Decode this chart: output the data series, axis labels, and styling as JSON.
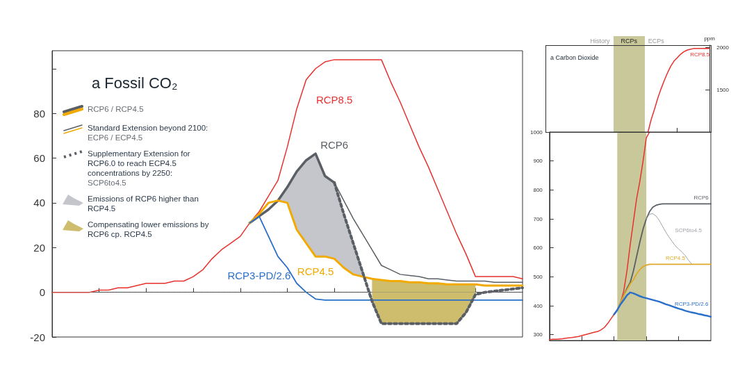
{
  "chart_data": [
    {
      "type": "line",
      "title": "a Fossil CO₂",
      "categories": [
        null,
        null,
        null,
        null,
        null,
        null,
        null,
        null,
        null,
        null,
        null,
        null,
        null,
        null,
        null,
        null,
        null,
        null,
        null,
        null,
        null,
        null,
        null,
        null,
        null,
        null,
        null,
        null,
        null,
        null,
        null,
        null,
        null,
        null,
        null,
        null,
        null,
        null,
        null,
        null,
        null,
        null,
        null,
        null,
        null,
        null,
        null,
        null,
        null,
        null,
        null
      ],
      "ylim": [
        -20,
        108
      ],
      "yticks": [
        -20,
        0,
        20,
        40,
        60,
        80,
        {
          "value": 100,
          "label": null
        }
      ],
      "tick_labels": "y",
      "marker": "none",
      "legend": "top left",
      "annotations": [
        "RCP6 / RCP4.5",
        "Standard Extension beyond 2100:",
        "ECP6 / ECP4.5",
        "Supplementary Extension for RCP6.0 to reach ECP4.5 concentrations by 2250:",
        "SCP6to4.5",
        "Emissions of RCP6 higher than RCP4.5",
        "Compensating lower emissions by RCP6 cp. RCP4.5"
      ],
      "ref_lines": [
        {
          "axis": "y",
          "value": 0,
          "line_style": "dotted",
          "color": "#777777"
        }
      ],
      "series": [
        {
          "name": "RCP8.5",
          "color": "#e8312c",
          "values": [
            0,
            0,
            0,
            0,
            0,
            1,
            1,
            2,
            2,
            3,
            4,
            4,
            4,
            5,
            5,
            7,
            10,
            15,
            19,
            22,
            25,
            31,
            36,
            43,
            50,
            65,
            82,
            95,
            100,
            103,
            104,
            104,
            104,
            104,
            104,
            104,
            94,
            85,
            75,
            65,
            56,
            46,
            36,
            26,
            17,
            7,
            7,
            7,
            7,
            7,
            6
          ]
        },
        {
          "name": "RCP6",
          "color": "#5a5f66",
          "values": [
            null,
            null,
            null,
            null,
            null,
            null,
            null,
            null,
            null,
            null,
            null,
            null,
            null,
            null,
            null,
            null,
            null,
            null,
            null,
            null,
            null,
            31,
            34,
            37,
            41,
            47,
            54,
            59,
            62,
            52,
            49,
            null,
            null,
            null,
            null,
            null,
            null,
            null,
            null,
            null,
            null,
            null,
            null,
            null,
            null,
            null,
            null,
            null,
            null,
            null,
            null
          ]
        },
        {
          "name": "RCP4.5",
          "color": "#f2a900",
          "values": [
            null,
            null,
            null,
            null,
            null,
            null,
            null,
            null,
            null,
            null,
            null,
            null,
            null,
            null,
            null,
            null,
            null,
            null,
            null,
            null,
            null,
            31,
            35,
            40,
            41,
            40,
            28,
            22,
            16,
            16,
            15,
            11,
            8,
            7,
            6,
            5.5,
            5,
            5,
            4.5,
            4.5,
            4,
            4,
            3.5,
            3.5,
            3.5,
            3.5,
            3,
            3,
            3,
            3,
            3
          ],
          "lower": [
            null,
            null,
            null,
            null,
            null,
            null,
            null,
            null,
            null,
            null,
            null,
            null,
            null,
            null,
            null,
            null,
            null,
            null,
            null,
            null,
            null,
            null,
            null,
            null,
            41,
            40,
            28,
            22,
            16,
            16,
            15,
            11,
            8,
            7,
            null,
            null,
            null,
            null,
            null,
            null,
            null,
            null,
            null,
            null,
            null,
            null,
            null,
            null,
            null,
            null,
            null
          ],
          "upper": [
            null,
            null,
            null,
            null,
            null,
            null,
            null,
            null,
            null,
            null,
            null,
            null,
            null,
            null,
            null,
            null,
            null,
            null,
            null,
            null,
            null,
            null,
            null,
            null,
            41,
            47,
            54,
            59,
            62,
            52,
            49,
            35,
            22,
            9,
            null,
            null,
            null,
            null,
            null,
            null,
            null,
            null,
            null,
            null,
            null,
            null,
            null,
            null,
            null,
            null,
            null
          ]
        },
        {
          "name": "RCP3-PD/2.6",
          "color": "#2a6fc9",
          "values": [
            null,
            null,
            null,
            null,
            null,
            null,
            null,
            null,
            null,
            null,
            null,
            null,
            null,
            null,
            null,
            null,
            null,
            null,
            null,
            null,
            null,
            31,
            34,
            25,
            16,
            11,
            4,
            0,
            -3,
            -3.5,
            -3.5,
            -3.5,
            -3.5,
            -3.5,
            -3.5,
            -3.5,
            -3.5,
            -3.5,
            -3.5,
            -3.5,
            -3.5,
            -3.5,
            -3.5,
            -3.5,
            -3.5,
            -3.5,
            -3.5,
            -3.5,
            -3.5,
            -3.5,
            -3.5
          ]
        },
        {
          "color": "#5a5f66",
          "values": [
            null,
            null,
            null,
            null,
            null,
            null,
            null,
            null,
            null,
            null,
            null,
            null,
            null,
            null,
            null,
            null,
            null,
            null,
            null,
            null,
            null,
            null,
            null,
            null,
            null,
            null,
            null,
            null,
            null,
            null,
            49,
            41,
            33,
            26,
            19,
            12,
            10,
            8,
            7.5,
            7,
            6,
            6,
            5.5,
            5,
            5,
            5,
            5,
            4.5,
            4.5,
            4.5,
            4.5
          ]
        },
        {
          "color": "#5a5f66",
          "line_style": "dotted",
          "values": [
            null,
            null,
            null,
            null,
            null,
            null,
            null,
            null,
            null,
            null,
            null,
            null,
            null,
            null,
            null,
            null,
            null,
            null,
            null,
            null,
            null,
            null,
            null,
            null,
            null,
            null,
            null,
            null,
            null,
            null,
            49,
            35,
            22,
            9,
            -4,
            -14,
            -14,
            -14,
            -14,
            -14,
            -14,
            -14,
            -14,
            -14,
            -9,
            -1,
            0,
            0.5,
            1,
            1.5,
            2
          ],
          "lower": [
            null,
            null,
            null,
            null,
            null,
            null,
            null,
            null,
            null,
            null,
            null,
            null,
            null,
            null,
            null,
            null,
            null,
            null,
            null,
            null,
            null,
            null,
            null,
            null,
            null,
            null,
            null,
            null,
            null,
            null,
            null,
            null,
            null,
            null,
            -4,
            -14,
            -14,
            -14,
            -14,
            -14,
            -14,
            -14,
            -14,
            -14,
            -9,
            -1,
            null,
            null,
            null,
            null,
            null
          ],
          "upper": [
            null,
            null,
            null,
            null,
            null,
            null,
            null,
            null,
            null,
            null,
            null,
            null,
            null,
            null,
            null,
            null,
            null,
            null,
            null,
            null,
            null,
            null,
            null,
            null,
            null,
            null,
            null,
            null,
            null,
            null,
            null,
            null,
            null,
            null,
            6,
            5.5,
            5,
            5,
            4.5,
            4.5,
            4,
            4,
            3.5,
            3.5,
            3.5,
            3.5,
            null,
            null,
            null,
            null,
            null
          ]
        }
      ]
    },
    {
      "type": "other",
      "title": "a Carbon Dioxide"
    },
    {
      "type": "line",
      "ylabel": "ppm",
      "categories": [
        null,
        null,
        null,
        null,
        null,
        null,
        null,
        null,
        null,
        null,
        null,
        null,
        null,
        null,
        null,
        null,
        null,
        null,
        null,
        null
      ],
      "ylim": [
        1000,
        2030
      ],
      "yticks": [
        1500,
        2000
      ],
      "tick_labels": "y",
      "marker": "none",
      "annotations": [
        "History",
        "RCPs",
        "ECPs"
      ],
      "series": [
        {
          "name": "RCP8.5",
          "color": "#e8312c",
          "values": [
            1000,
            1150,
            1270,
            1400,
            1510,
            1610,
            1700,
            1780,
            1840,
            1880,
            1920,
            1950,
            1970,
            1980,
            1990,
            1990,
            1990,
            1990,
            1990,
            1990
          ]
        }
      ]
    },
    {
      "type": "line",
      "categories": [
        null,
        null,
        null,
        null,
        null,
        null,
        null,
        null,
        null,
        null,
        null,
        null,
        null,
        null,
        null,
        null,
        null,
        null,
        null,
        null,
        null,
        null,
        null,
        null,
        null,
        null,
        null,
        null,
        null,
        null,
        null,
        null,
        null,
        null,
        null,
        null,
        null,
        null,
        null,
        null,
        null,
        null,
        null,
        null,
        null,
        null,
        null,
        null,
        null,
        null,
        null
      ],
      "ylim": [
        280,
        1000
      ],
      "yticks": [
        300,
        400,
        500,
        600,
        700,
        800,
        900,
        1000
      ],
      "tick_labels": "y",
      "marker": "none",
      "series": [
        {
          "color": "#e8312c",
          "values": [
            283,
            284,
            284,
            285,
            286,
            288,
            289,
            290,
            292,
            294,
            297,
            300,
            303,
            306,
            309,
            311,
            317,
            325,
            338,
            354,
            370,
            385,
            410,
            450,
            520,
            610,
            690,
            770,
            830,
            900,
            980,
            1000,
            null,
            null,
            null,
            null,
            null,
            null,
            null,
            null,
            null,
            null,
            null,
            null,
            null,
            null,
            null,
            null,
            null,
            null,
            null
          ]
        },
        {
          "name": "RCP6",
          "color": "#5a5f66",
          "values": [
            null,
            null,
            null,
            null,
            null,
            null,
            null,
            null,
            null,
            null,
            null,
            null,
            null,
            null,
            null,
            null,
            null,
            null,
            null,
            null,
            370,
            385,
            410,
            435,
            460,
            480,
            520,
            570,
            620,
            665,
            700,
            725,
            740,
            747,
            750,
            752,
            752,
            752,
            752,
            752,
            752,
            752,
            752,
            752,
            752,
            752,
            752,
            752,
            752,
            752,
            752
          ]
        },
        {
          "name": "SCP6to4.5",
          "color": "#a0a3a8",
          "values": [
            null,
            null,
            null,
            null,
            null,
            null,
            null,
            null,
            null,
            null,
            null,
            null,
            null,
            null,
            null,
            null,
            null,
            null,
            null,
            null,
            null,
            null,
            null,
            null,
            null,
            null,
            null,
            null,
            null,
            null,
            700,
            716,
            718,
            710,
            695,
            675,
            655,
            638,
            622,
            607,
            596,
            586,
            574,
            558,
            545,
            null,
            null,
            null,
            null,
            null,
            null
          ]
        },
        {
          "name": "RCP4.5",
          "color": "#e0a828",
          "values": [
            null,
            null,
            null,
            null,
            null,
            null,
            null,
            null,
            null,
            null,
            null,
            null,
            null,
            null,
            null,
            null,
            null,
            null,
            null,
            null,
            370,
            385,
            412,
            435,
            455,
            475,
            490,
            510,
            525,
            535,
            540,
            543,
            543,
            543,
            543,
            543,
            543,
            543,
            543,
            543,
            543,
            543,
            543,
            543,
            543,
            543,
            543,
            543,
            543,
            543,
            543
          ]
        },
        {
          "name": "RCP3-PD/2.6",
          "color": "#2a6fc9",
          "values": [
            null,
            null,
            null,
            null,
            null,
            null,
            null,
            null,
            null,
            null,
            null,
            null,
            null,
            null,
            null,
            null,
            null,
            null,
            null,
            null,
            370,
            385,
            405,
            420,
            436,
            446,
            443,
            438,
            433,
            429,
            426,
            423,
            420,
            417,
            414,
            410,
            405,
            402,
            398,
            394,
            390,
            387,
            383,
            380,
            377,
            375,
            372,
            370,
            367,
            365,
            362
          ]
        }
      ]
    }
  ]
}
